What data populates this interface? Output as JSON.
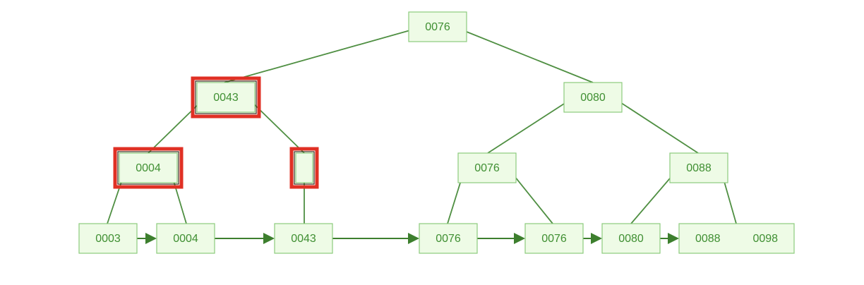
{
  "tree": {
    "root": {
      "label": "0076"
    },
    "level1": [
      {
        "label": "0043",
        "highlighted": true
      },
      {
        "label": "0080",
        "highlighted": false
      }
    ],
    "level2": [
      {
        "label": "0004",
        "highlighted": true
      },
      {
        "label": "",
        "highlighted": true
      },
      {
        "label": "0076",
        "highlighted": false
      },
      {
        "label": "0088",
        "highlighted": false
      }
    ],
    "leaves": [
      {
        "labels": [
          "0003"
        ]
      },
      {
        "labels": [
          "0004"
        ]
      },
      {
        "labels": [
          "0043"
        ]
      },
      {
        "labels": [
          "0076"
        ]
      },
      {
        "labels": [
          "0076"
        ]
      },
      {
        "labels": [
          "0080"
        ]
      },
      {
        "labels": [
          "0088",
          "0098"
        ]
      }
    ]
  },
  "colors": {
    "node_fill": "#eefbe6",
    "node_border": "#8ccb7d",
    "text": "#3f8f32",
    "edge": "#4f8f42",
    "highlight": "#e03024"
  }
}
